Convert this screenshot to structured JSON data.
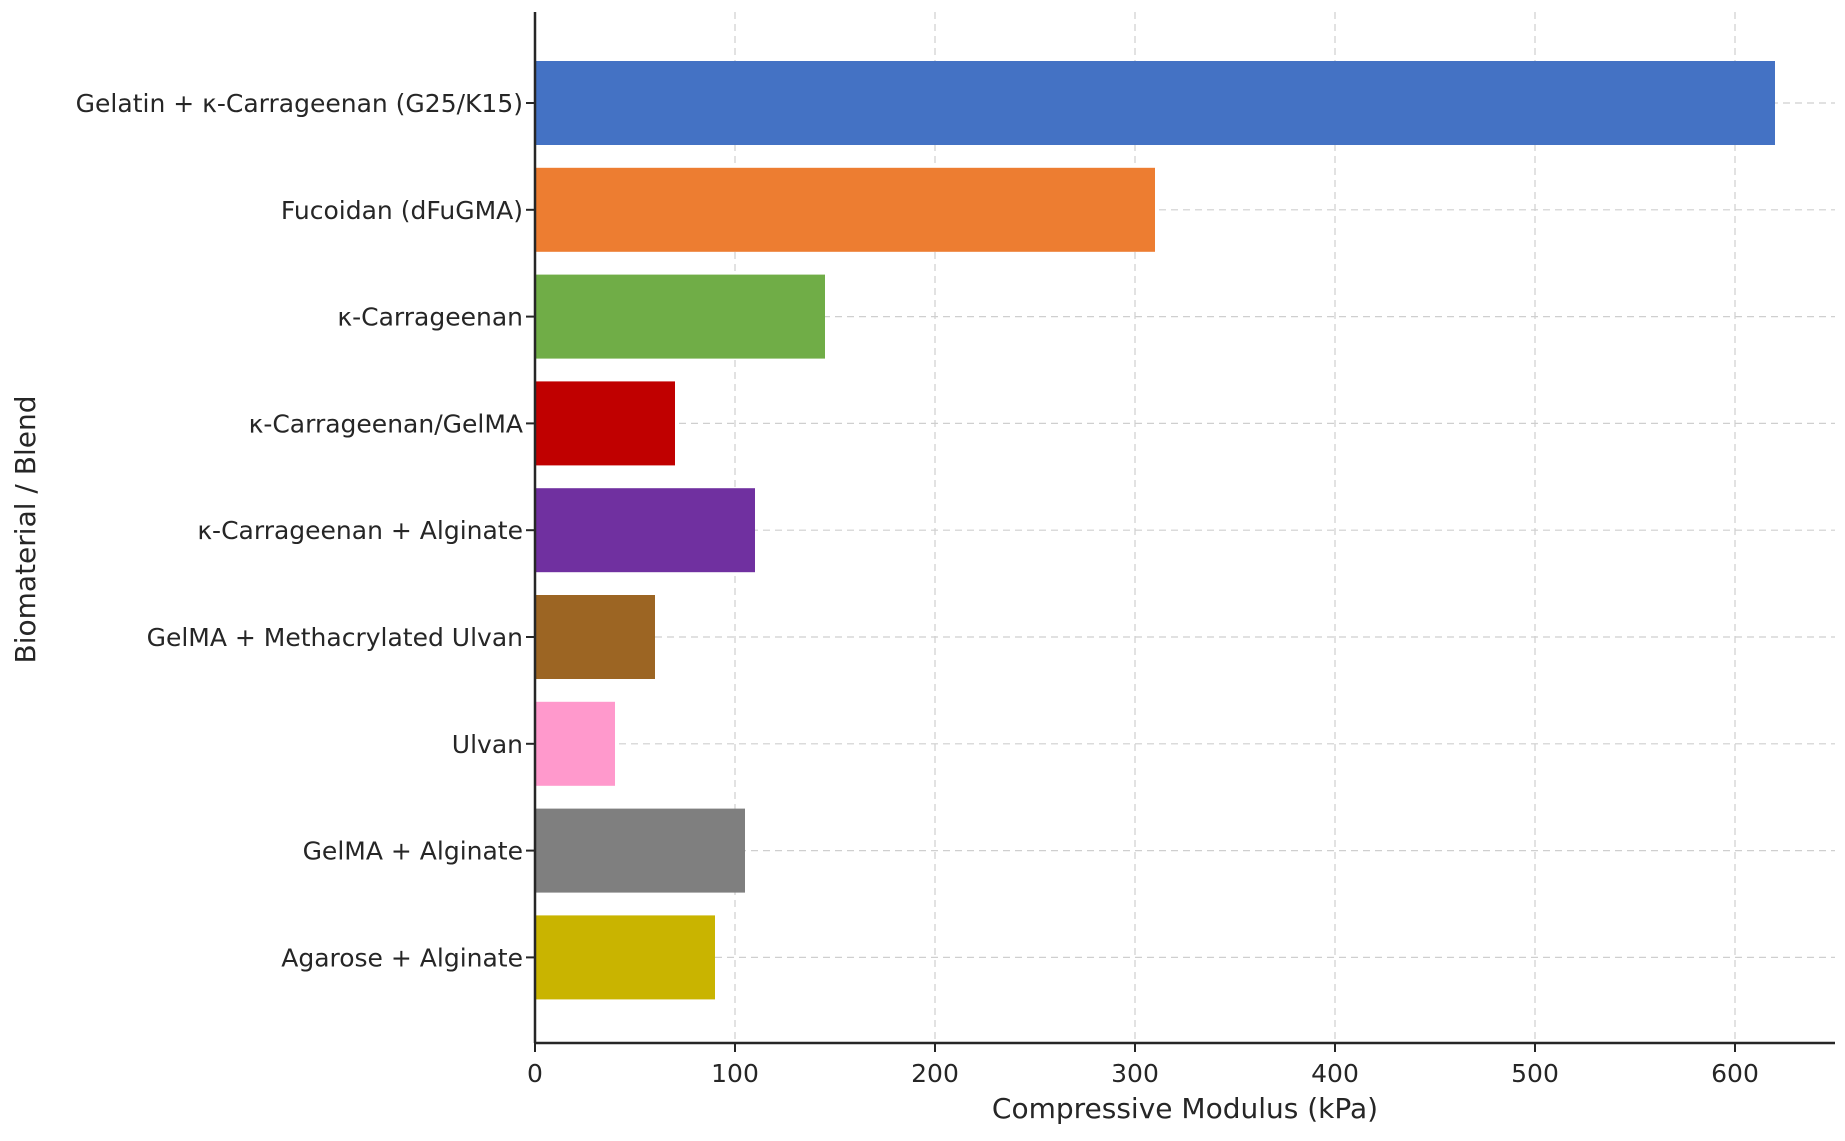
{
  "chart_data": {
    "type": "bar",
    "orientation": "horizontal",
    "title": "",
    "xlabel": "Compressive Modulus (kPa)",
    "ylabel": "Biomaterial / Blend",
    "xlim": [
      0,
      650
    ],
    "xticks": [
      0,
      100,
      200,
      300,
      400,
      500,
      600
    ],
    "grid": true,
    "categories": [
      "Gelatin + κ-Carrageenan (G25/K15)",
      "Fucoidan (dFuGMA)",
      "κ-Carrageenan",
      "κ-Carrageenan/GelMA",
      "κ-Carrageenan + Alginate",
      "GelMA + Methacrylated Ulvan",
      "Ulvan",
      "GelMA + Alginate",
      "Agarose + Alginate"
    ],
    "values": [
      620,
      310,
      145,
      70,
      110,
      60,
      40,
      105,
      90
    ],
    "colors": [
      "#4472c4",
      "#ed7d31",
      "#70ad47",
      "#c00000",
      "#7030a0",
      "#9c6523",
      "#ff99cc",
      "#7f7f7f",
      "#c9b400"
    ]
  }
}
